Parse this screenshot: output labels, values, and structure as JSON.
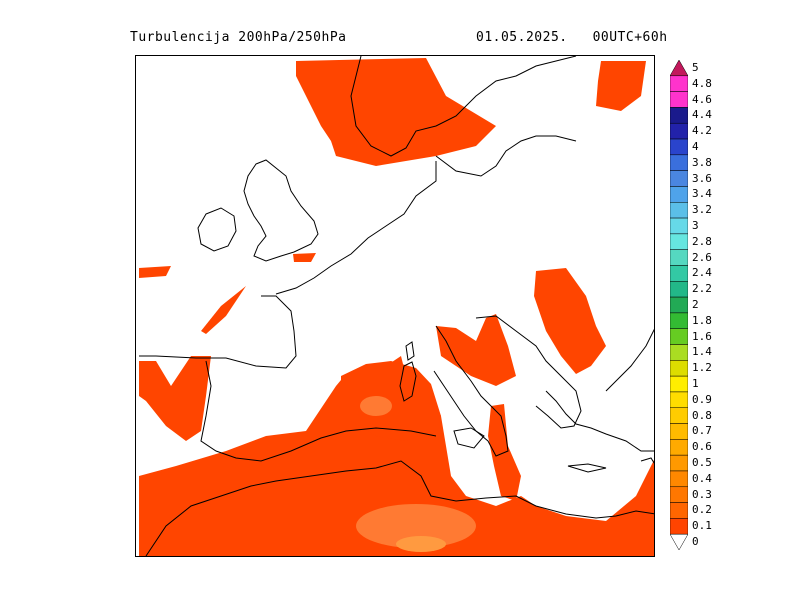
{
  "header": {
    "title": "Turbulencija 200hPa/250hPa",
    "date": "01.05.2025.",
    "run": "00UTC+60h"
  },
  "colorbar": {
    "levels": [
      "5",
      "4.8",
      "4.6",
      "4.4",
      "4.2",
      "4",
      "3.8",
      "3.6",
      "3.4",
      "3.2",
      "3",
      "2.8",
      "2.6",
      "2.4",
      "2.2",
      "2",
      "1.8",
      "1.6",
      "1.4",
      "1.2",
      "1",
      "0.9",
      "0.8",
      "0.7",
      "0.6",
      "0.5",
      "0.4",
      "0.3",
      "0.2",
      "0.1",
      "0"
    ],
    "colors": [
      "#c2185b",
      "#ff33cc",
      "#ff33cc",
      "#1a1a8c",
      "#2222aa",
      "#2a44cc",
      "#3a6fdd",
      "#4a86e0",
      "#4fa3ea",
      "#5bbfe8",
      "#66d9e8",
      "#66e6e0",
      "#55d8c0",
      "#33c9a4",
      "#22b888",
      "#22aa55",
      "#33bb33",
      "#66cc22",
      "#aadd22",
      "#dddd00",
      "#ffee00",
      "#ffdd00",
      "#ffcc00",
      "#ffbb00",
      "#ffaa00",
      "#ff9900",
      "#ff8800",
      "#ff7700",
      "#ff6600",
      "#ff4400",
      "#ffffff"
    ]
  },
  "map": {
    "field_color": "#ff4500",
    "field_light_color": "#ff7a33",
    "coast_color": "#000000"
  }
}
